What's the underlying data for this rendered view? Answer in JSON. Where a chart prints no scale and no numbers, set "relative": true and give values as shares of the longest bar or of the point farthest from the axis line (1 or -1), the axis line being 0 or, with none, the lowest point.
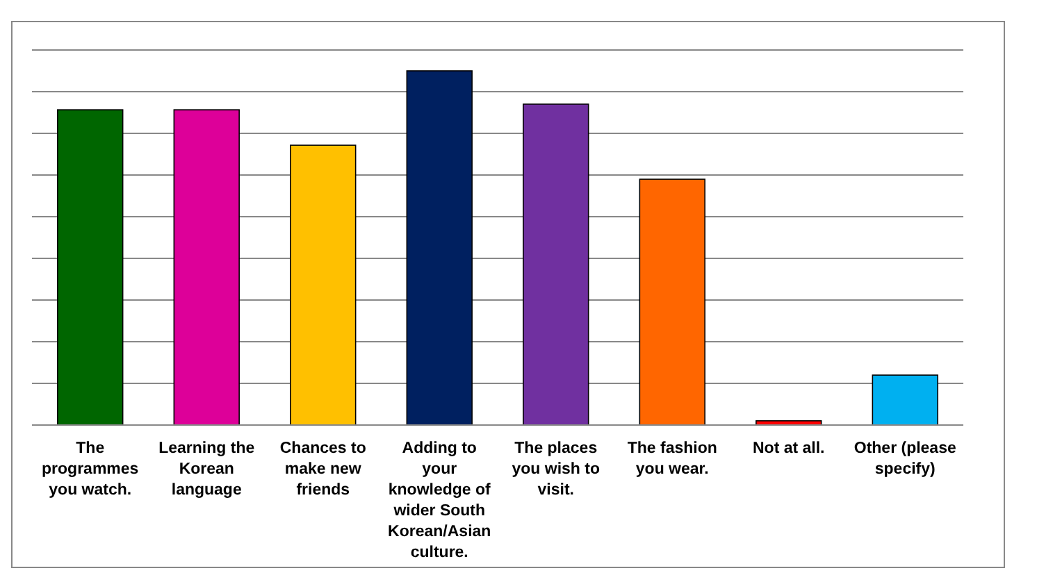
{
  "chart_data": {
    "type": "bar",
    "relative": true,
    "grid": "y",
    "categories": [
      "The programmes you watch.",
      "Learning the Korean language",
      "Chances to make new friends",
      "Adding to your knowledge of wider South Korean/Asian culture.",
      "The places you wish to visit.",
      "The fashion you wear.",
      "Not at all.",
      "Other (please specify)"
    ],
    "values": [
      0.89,
      0.89,
      0.79,
      1,
      0.906,
      0.694,
      0.012,
      0.141
    ],
    "colors": [
      "#006600",
      "#dd0099",
      "#ffc000",
      "#002060",
      "#7030a0",
      "#ff6600",
      "#ff0000",
      "#00b0f0"
    ]
  }
}
